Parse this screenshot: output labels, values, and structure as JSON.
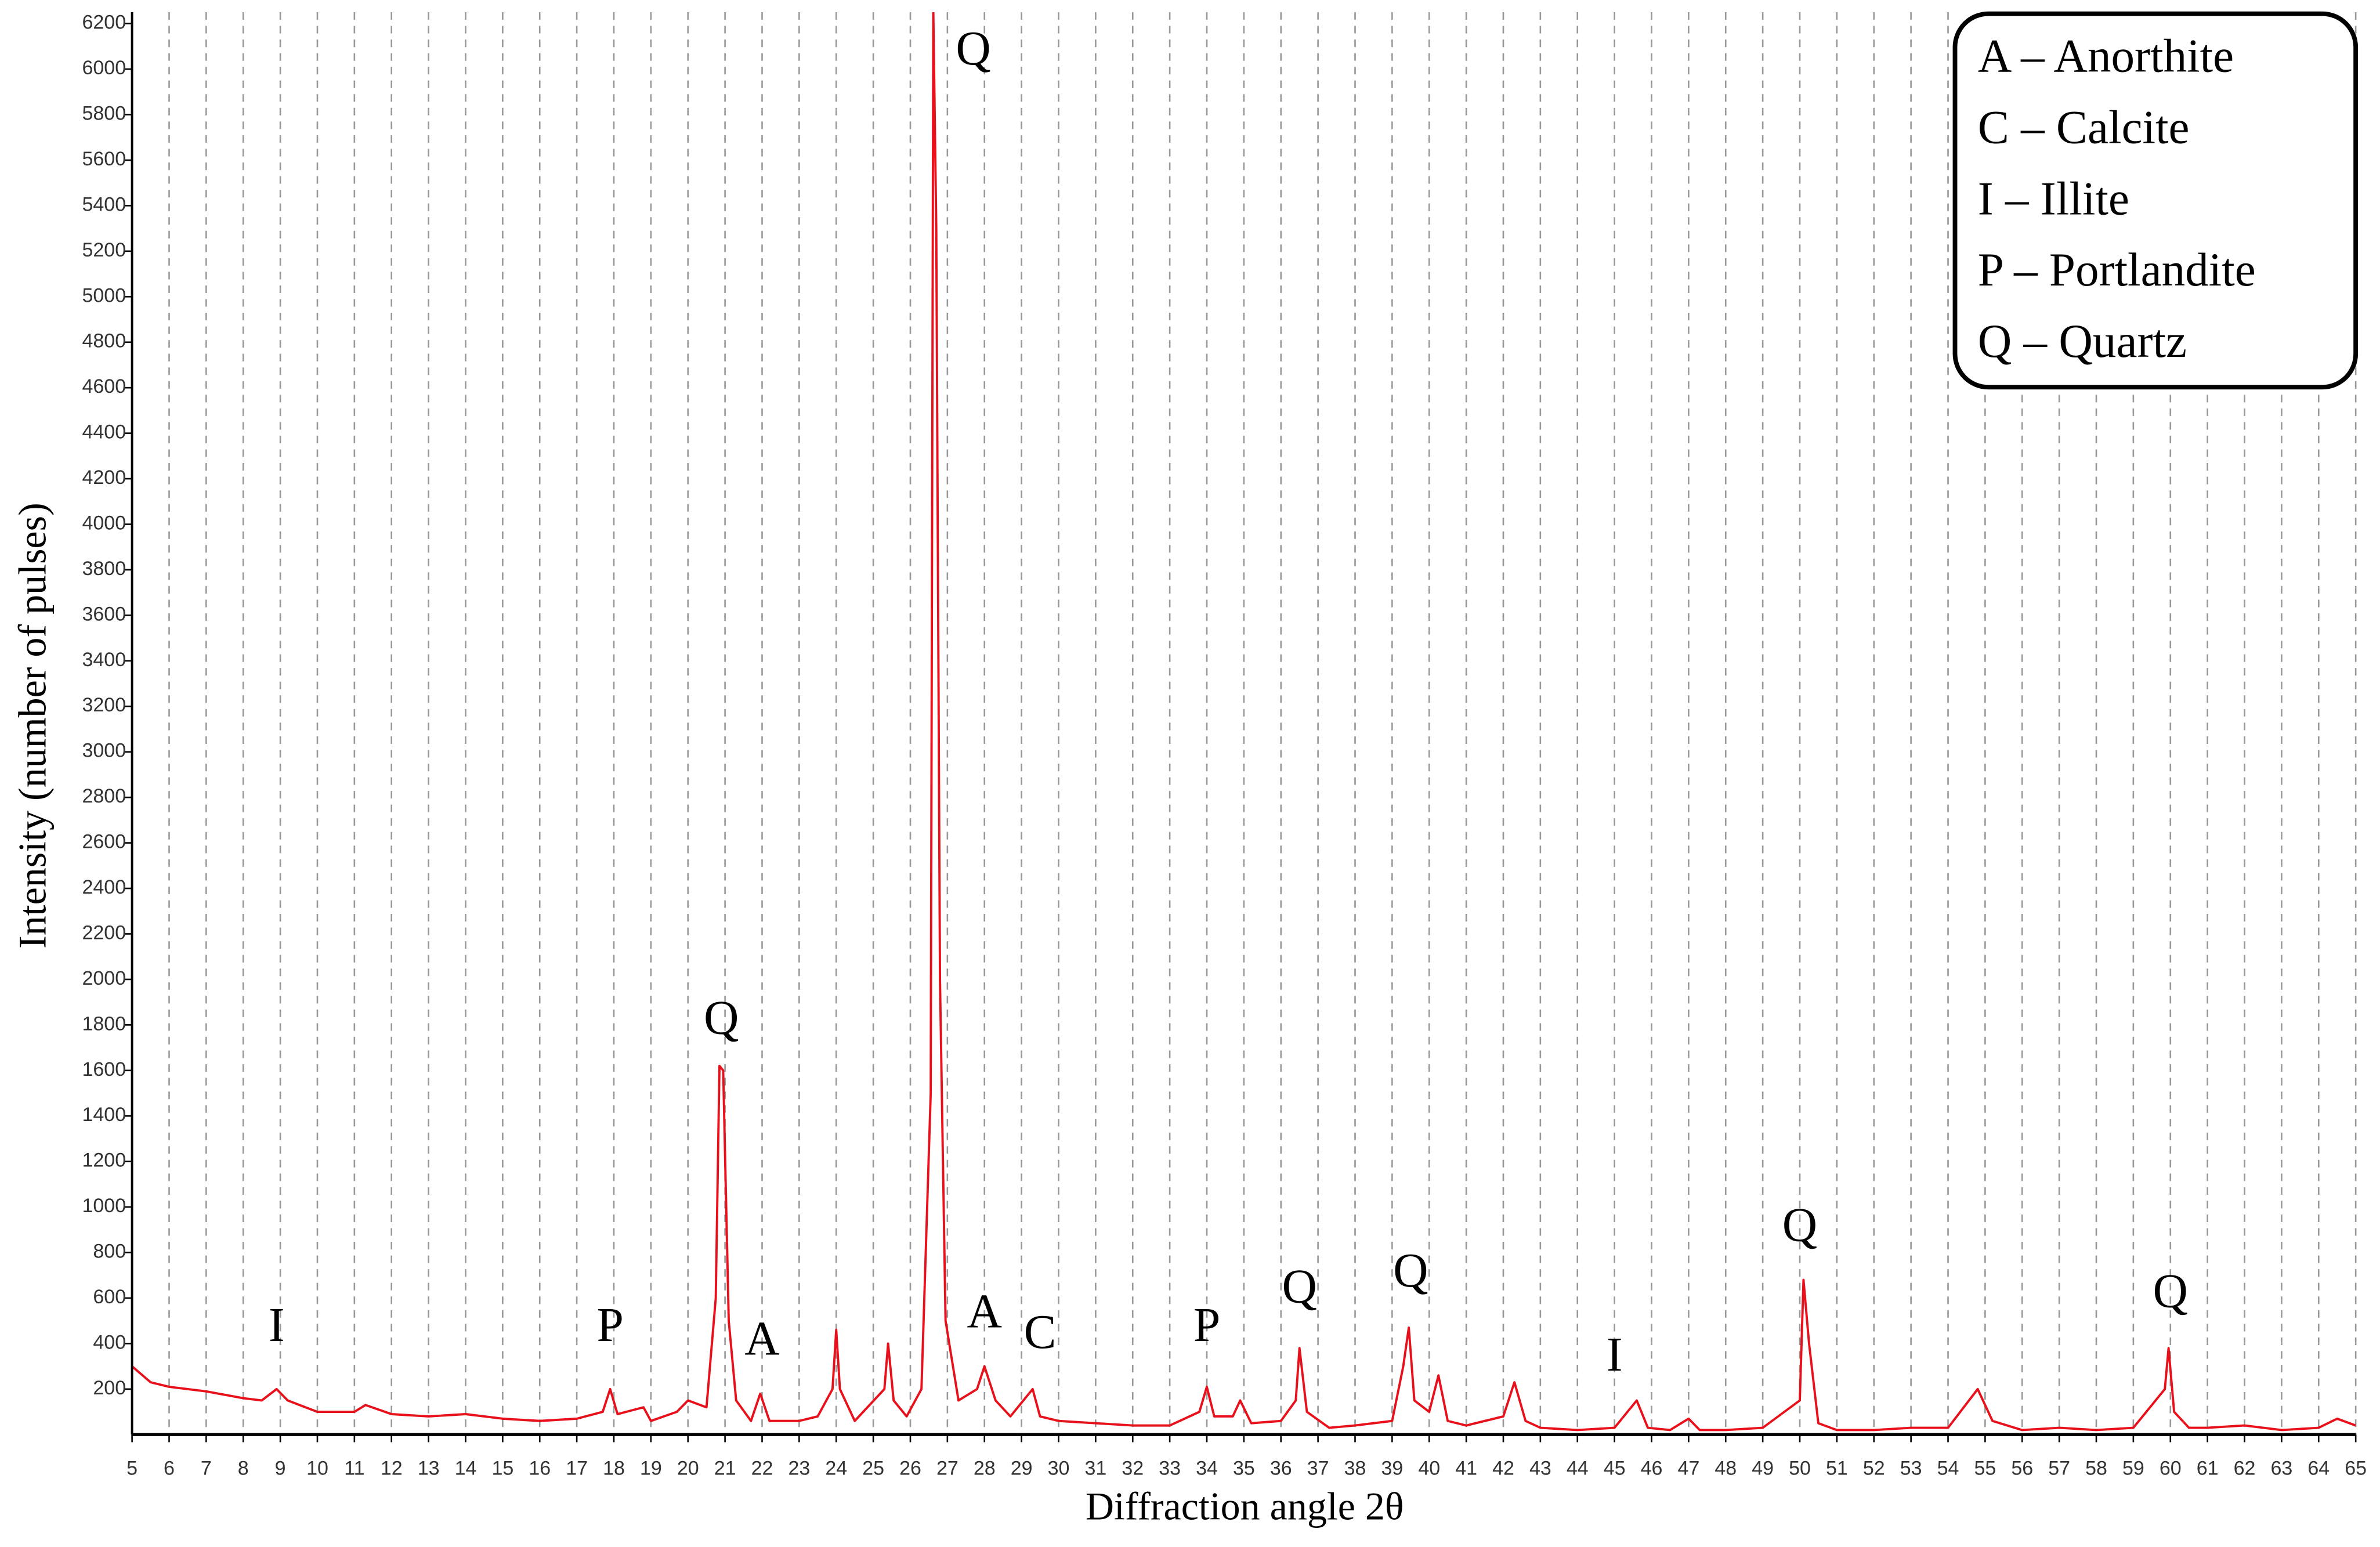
{
  "chart_data": {
    "type": "line",
    "x_label": "Diffraction angle 2θ",
    "y_label": "Intensity (number of pulses)",
    "color": "#e8101a",
    "grid": true,
    "legend_items": [
      "A – Anorthite",
      "C – Calcite",
      "I – Illite",
      "P – Portlandite",
      "Q – Quartz"
    ],
    "xlim": [
      5,
      65
    ],
    "ylim": [
      0,
      6250
    ],
    "xticks": [
      5,
      6,
      7,
      8,
      9,
      10,
      11,
      12,
      13,
      14,
      15,
      16,
      17,
      18,
      19,
      20,
      21,
      22,
      23,
      24,
      25,
      26,
      27,
      28,
      29,
      30,
      31,
      32,
      33,
      34,
      35,
      36,
      37,
      38,
      39,
      40,
      41,
      42,
      43,
      44,
      45,
      46,
      47,
      48,
      49,
      50,
      51,
      52,
      53,
      54,
      55,
      56,
      57,
      58,
      59,
      60,
      61,
      62,
      63,
      64,
      65
    ],
    "yticks": [
      200,
      400,
      600,
      800,
      1000,
      1200,
      1400,
      1600,
      1800,
      2000,
      2200,
      2400,
      2600,
      2800,
      3000,
      3200,
      3400,
      3600,
      3800,
      4000,
      4200,
      4400,
      4600,
      4800,
      5000,
      5200,
      5400,
      5600,
      5800,
      6000,
      6200
    ],
    "x": [
      5,
      5.5,
      6,
      7,
      8,
      8.5,
      8.9,
      9.2,
      10,
      11,
      11.3,
      12,
      13,
      14,
      15,
      16,
      17,
      17.7,
      17.9,
      18.1,
      18.8,
      19,
      19.7,
      20,
      20.5,
      20.75,
      20.85,
      20.95,
      21.1,
      21.3,
      21.7,
      21.95,
      22.2,
      23,
      23.5,
      23.9,
      24,
      24.1,
      24.5,
      25.3,
      25.4,
      25.55,
      25.9,
      26.3,
      26.55,
      26.62,
      26.7,
      26.8,
      26.95,
      27.3,
      27.8,
      28,
      28.3,
      28.7,
      29.3,
      29.5,
      30,
      31,
      32,
      33,
      33.8,
      34,
      34.2,
      34.7,
      34.9,
      35.2,
      36,
      36.4,
      36.5,
      36.7,
      37.3,
      38,
      39,
      39.3,
      39.45,
      39.6,
      40,
      40.25,
      40.5,
      41,
      42,
      42.3,
      42.6,
      43,
      44,
      45,
      45.6,
      45.9,
      46.5,
      47,
      47.3,
      48,
      49,
      50,
      50.1,
      50.25,
      50.5,
      51,
      52,
      53,
      54,
      54.8,
      55.2,
      56,
      57,
      58,
      59,
      59.85,
      59.95,
      60.1,
      60.5,
      61,
      62,
      63,
      64,
      64.5,
      65
    ],
    "values": [
      300,
      230,
      210,
      190,
      160,
      150,
      200,
      150,
      100,
      100,
      130,
      90,
      80,
      90,
      70,
      60,
      70,
      100,
      200,
      90,
      120,
      60,
      100,
      150,
      120,
      600,
      1620,
      1600,
      500,
      150,
      60,
      180,
      60,
      60,
      80,
      200,
      460,
      200,
      60,
      200,
      400,
      150,
      80,
      200,
      1500,
      6250,
      5300,
      2000,
      500,
      150,
      200,
      300,
      150,
      80,
      200,
      80,
      60,
      50,
      40,
      40,
      100,
      210,
      80,
      80,
      150,
      50,
      60,
      150,
      380,
      100,
      30,
      40,
      60,
      300,
      470,
      150,
      100,
      260,
      60,
      40,
      80,
      230,
      60,
      30,
      20,
      30,
      150,
      30,
      20,
      70,
      20,
      20,
      30,
      150,
      680,
      400,
      50,
      20,
      20,
      30,
      30,
      200,
      60,
      20,
      30,
      20,
      30,
      200,
      380,
      100,
      30,
      30,
      40,
      20,
      30,
      70,
      40
    ],
    "annotations": [
      {
        "text": "I",
        "x": 8.9,
        "y": 460
      },
      {
        "text": "P",
        "x": 17.9,
        "y": 460
      },
      {
        "text": "Q",
        "x": 20.9,
        "y": 1810
      },
      {
        "text": "A",
        "x": 22,
        "y": 400
      },
      {
        "text": "Q",
        "x": 27.7,
        "y": 6070
      },
      {
        "text": "A",
        "x": 28,
        "y": 520
      },
      {
        "text": "C",
        "x": 29.5,
        "y": 430
      },
      {
        "text": "P",
        "x": 34,
        "y": 460
      },
      {
        "text": "Q",
        "x": 36.5,
        "y": 630
      },
      {
        "text": "Q",
        "x": 39.5,
        "y": 700
      },
      {
        "text": "I",
        "x": 45,
        "y": 330
      },
      {
        "text": "Q",
        "x": 50,
        "y": 900
      },
      {
        "text": "Q",
        "x": 60,
        "y": 610
      }
    ]
  }
}
